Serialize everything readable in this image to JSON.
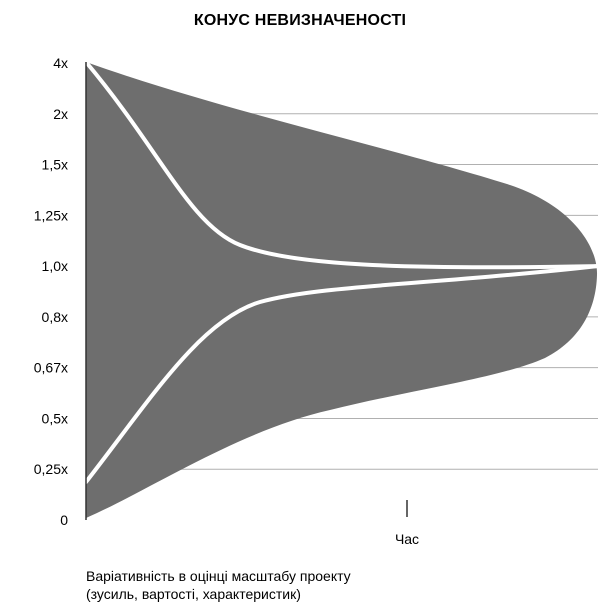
{
  "chart_data": {
    "type": "area",
    "title": "КОНУС НЕВИЗНАЧЕНОСТІ",
    "xlabel": "Час",
    "ylabel": "",
    "y_tick_labels": [
      "4x",
      "2x",
      "1,5x",
      "1,25x",
      "1,0x",
      "0,8x",
      "0,67x",
      "0,5x",
      "0,25x",
      "0"
    ],
    "grid": true,
    "colors": {
      "cone": "#6e6e6e",
      "estimate_lines": "#ffffff",
      "grid": "#b0b0b0",
      "axis": "#333333"
    }
  },
  "caption": {
    "line1": "Варіативність в оцінці масштабу проекту",
    "line2": "(зусиль, вартості, характеристик)"
  }
}
